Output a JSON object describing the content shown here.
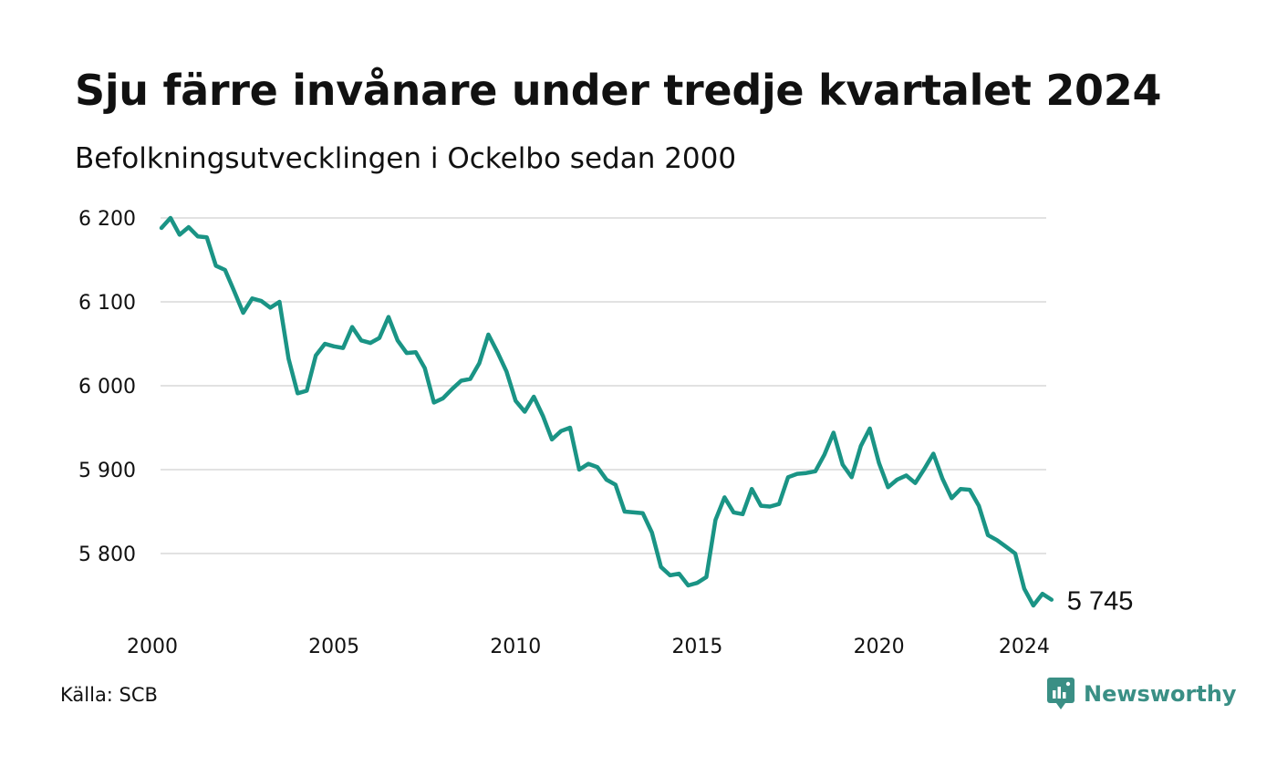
{
  "title": "Sju färre invånare under tredje kvartalet 2024",
  "subtitle": "Befolkningsutvecklingen i Ockelbo sedan 2000",
  "source": "Källa: SCB",
  "brand": "Newsworthy",
  "colors": {
    "line": "#1a9485",
    "grid": "#e2e2e2",
    "brand": "#3a8f85",
    "text": "#111111"
  },
  "chart_data": {
    "type": "line",
    "title": "Sju färre invånare under tredje kvartalet 2024",
    "subtitle": "Befolkningsutvecklingen i Ockelbo sedan 2000",
    "ylim": [
      5730,
      6210
    ],
    "xlim": [
      2000,
      2024.75
    ],
    "grid": "horizontal",
    "y_ticks": [
      5800,
      5900,
      6000,
      6100,
      6200
    ],
    "y_tick_labels": [
      "5 800",
      "5 900",
      "6 000",
      "6 100",
      "6 200"
    ],
    "x_ticks": [
      2000,
      2005,
      2010,
      2015,
      2020,
      2024
    ],
    "x_tick_labels": [
      "2000",
      "2005",
      "2010",
      "2015",
      "2020",
      "2024"
    ],
    "end_label": "5 745",
    "series": [
      {
        "x": [
          2000.25,
          2000.5,
          2000.75,
          2001.0,
          2001.25,
          2001.5,
          2001.75,
          2002.0,
          2002.25,
          2002.5,
          2002.75,
          2003.0,
          2003.25,
          2003.5,
          2003.75,
          2004.0,
          2004.25,
          2004.5,
          2004.75,
          2005.0,
          2005.25,
          2005.5,
          2005.75,
          2006.0,
          2006.25,
          2006.5,
          2006.75,
          2007.0,
          2007.25,
          2007.5,
          2007.75,
          2008.0,
          2008.25,
          2008.5,
          2008.75,
          2009.0,
          2009.25,
          2009.5,
          2009.75,
          2010.0,
          2010.25,
          2010.5,
          2010.75,
          2011.0,
          2011.25,
          2011.5,
          2011.75,
          2012.0,
          2012.25,
          2012.5,
          2012.75,
          2013.0,
          2013.25,
          2013.5,
          2013.75,
          2014.0,
          2014.25,
          2014.5,
          2014.75,
          2015.0,
          2015.25,
          2015.5,
          2015.75,
          2016.0,
          2016.25,
          2016.5,
          2016.75,
          2017.0,
          2017.25,
          2017.5,
          2017.75,
          2018.0,
          2018.25,
          2018.5,
          2018.75,
          2019.0,
          2019.25,
          2019.5,
          2019.75,
          2020.0,
          2020.25,
          2020.5,
          2020.75,
          2021.0,
          2021.25,
          2021.5,
          2021.75,
          2022.0,
          2022.25,
          2022.5,
          2022.75,
          2023.0,
          2023.25,
          2023.5,
          2023.75,
          2024.0,
          2024.25,
          2024.5,
          2024.75
        ],
        "values": [
          6188,
          6200,
          6180,
          6189,
          6178,
          6177,
          6143,
          6138,
          6113,
          6087,
          6104,
          6101,
          6093,
          6100,
          6032,
          5991,
          5994,
          6036,
          6050,
          6047,
          6045,
          6070,
          6054,
          6051,
          6057,
          6082,
          6054,
          6039,
          6040,
          6021,
          5980,
          5985,
          5996,
          6006,
          6008,
          6027,
          6061,
          6040,
          6017,
          5982,
          5969,
          5987,
          5964,
          5936,
          5946,
          5950,
          5900,
          5907,
          5903,
          5888,
          5882,
          5850,
          5849,
          5848,
          5825,
          5784,
          5774,
          5776,
          5762,
          5765,
          5772,
          5840,
          5867,
          5849,
          5847,
          5877,
          5857,
          5856,
          5859,
          5891,
          5895,
          5896,
          5898,
          5918,
          5944,
          5906,
          5891,
          5928,
          5949,
          5908,
          5879,
          5888,
          5893,
          5884,
          5901,
          5919,
          5889,
          5866,
          5877,
          5876,
          5857,
          5822,
          5816,
          5808,
          5800,
          5758,
          5738,
          5752,
          5745
        ]
      }
    ]
  }
}
